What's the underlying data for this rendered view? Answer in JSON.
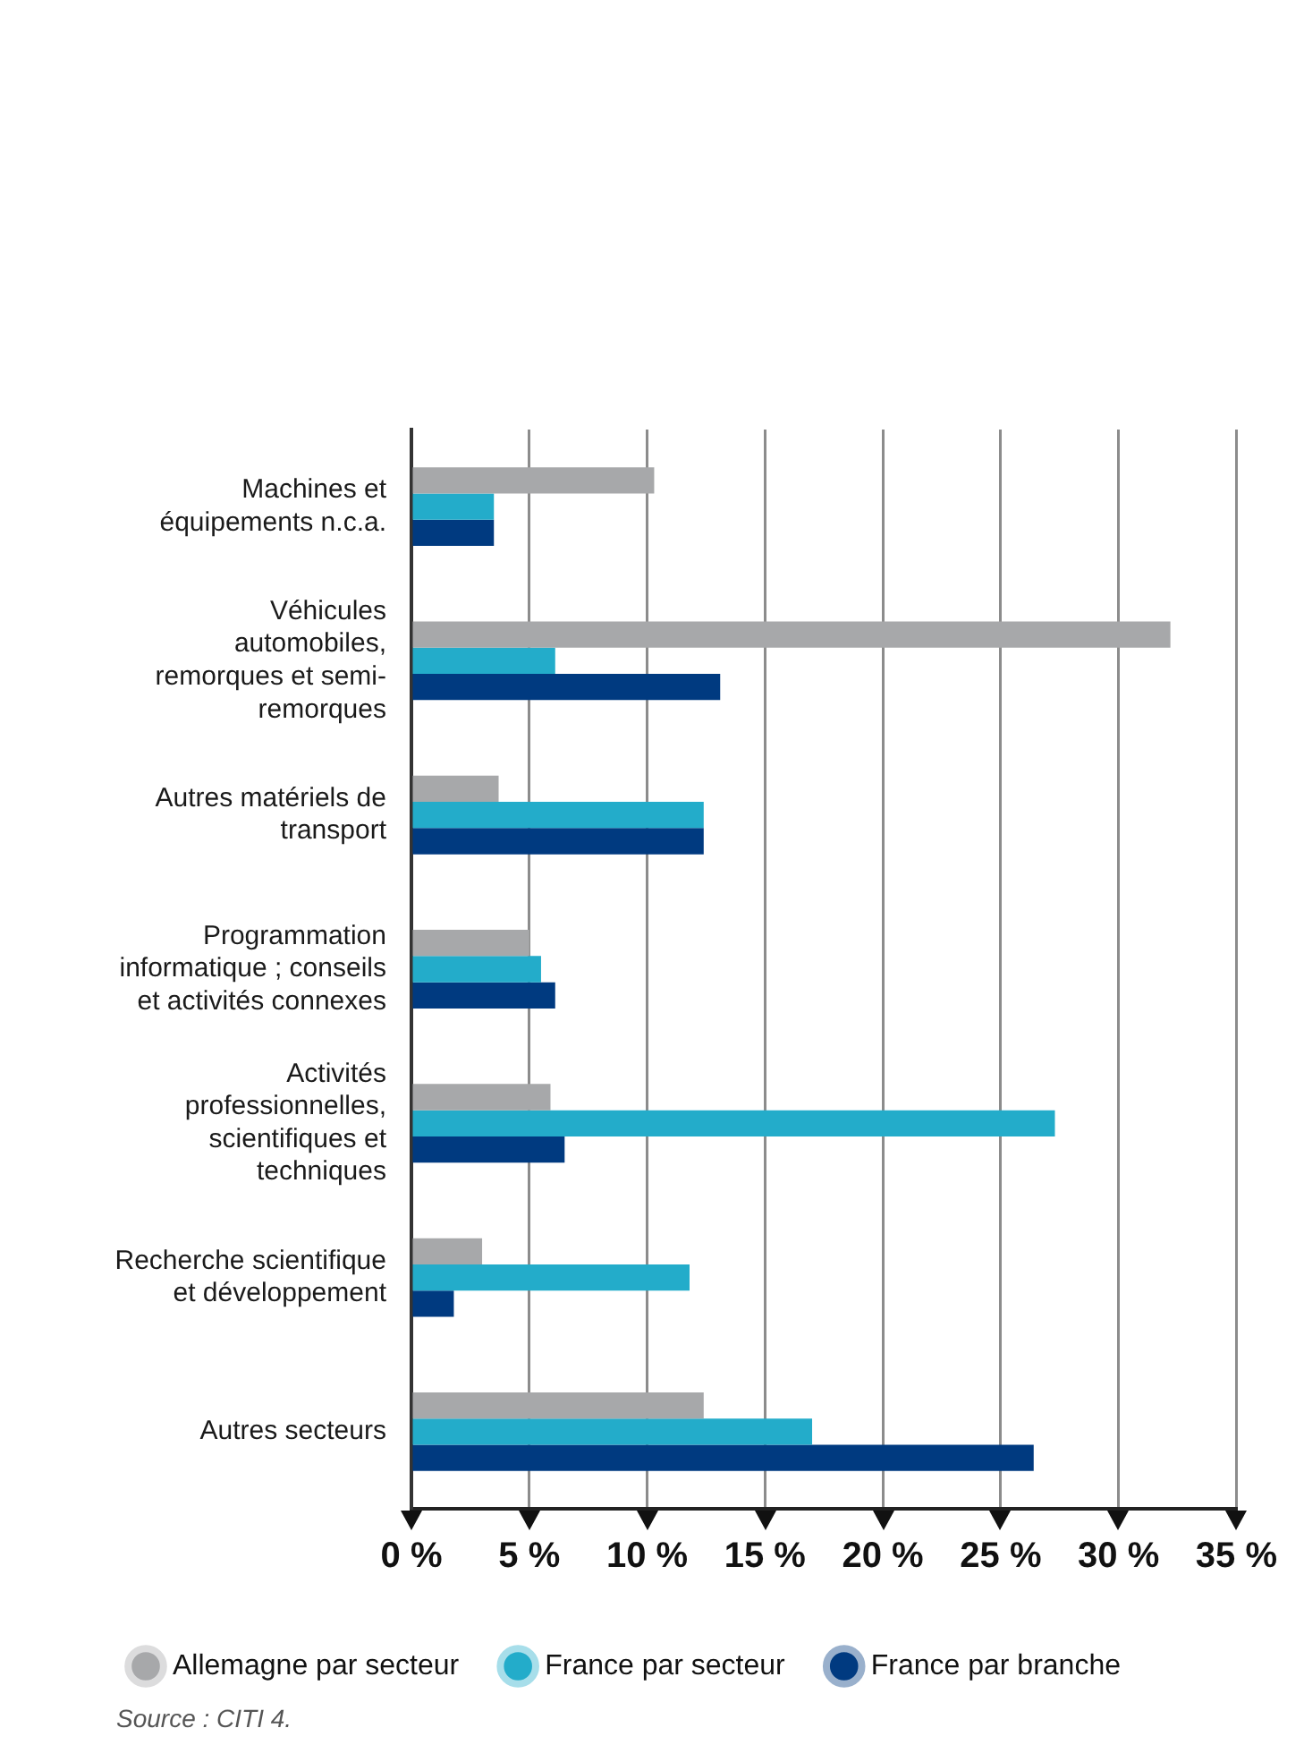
{
  "chart_data": {
    "type": "bar",
    "orientation": "horizontal",
    "categories": [
      "Machines et équipements n.c.a.",
      "Véhicules automobiles, remorques et semi-remorques",
      "Autres matériels de transport",
      "Programmation informatique ; conseils et activités connexes",
      "Activités professionnelles, scientifiques et techniques",
      "Recherche scientifique et développement",
      "Autres secteurs"
    ],
    "series": [
      {
        "name": "Allemagne par secteur",
        "color": "#a7a8aa",
        "values": [
          10.3,
          32.2,
          3.7,
          5.0,
          5.9,
          3.0,
          12.4
        ]
      },
      {
        "name": "France par secteur",
        "color": "#23acca",
        "values": [
          3.5,
          6.1,
          12.4,
          5.5,
          27.3,
          11.8,
          17.0
        ]
      },
      {
        "name": "France par branche",
        "color": "#003a80",
        "values": [
          3.5,
          13.1,
          12.4,
          6.1,
          6.5,
          1.8,
          26.4
        ]
      }
    ],
    "xlim": [
      0,
      35
    ],
    "xticks": [
      {
        "value": 0,
        "label": "0 %"
      },
      {
        "value": 5,
        "label": "5 %"
      },
      {
        "value": 10,
        "label": "10 %"
      },
      {
        "value": 15,
        "label": "15 %"
      },
      {
        "value": 20,
        "label": "20 %"
      },
      {
        "value": 25,
        "label": "25 %"
      },
      {
        "value": 30,
        "label": "30 %"
      },
      {
        "value": 35,
        "label": "35 %"
      }
    ],
    "grid": "x",
    "legend": "bottom",
    "annotations": [
      "Source : CITI 4."
    ]
  }
}
